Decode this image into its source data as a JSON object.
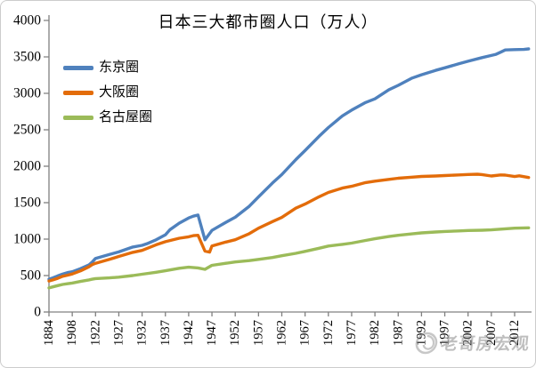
{
  "title": "日本三大都市圈人口（万人）",
  "watermark": {
    "text": "老哥房宏观",
    "logo_icon": "swirl-circle-icon",
    "color": "#8a8a8a"
  },
  "axis_color": "#808080",
  "chart_data": {
    "type": "line",
    "title": "日本三大都市圈人口（万人）",
    "xlabel": "",
    "ylabel": "",
    "ylim": [
      0,
      4000
    ],
    "y_ticks": [
      0,
      500,
      1000,
      1500,
      2000,
      2500,
      3000,
      3500,
      4000
    ],
    "x_ticks": [
      1884,
      1908,
      1922,
      1927,
      1932,
      1937,
      1942,
      1947,
      1952,
      1957,
      1962,
      1967,
      1972,
      1977,
      1982,
      1987,
      1992,
      1997,
      2002,
      2007,
      2012
    ],
    "x_tick_rotation": -90,
    "x_end_year": 2015,
    "grid": false,
    "legend_position": "inside-upper-left",
    "series": [
      {
        "id": "tokyo",
        "name": "东京圈",
        "color": "#4F81BD",
        "points": [
          [
            1884,
            450
          ],
          [
            1888,
            468
          ],
          [
            1893,
            495
          ],
          [
            1898,
            520
          ],
          [
            1903,
            540
          ],
          [
            1908,
            552
          ],
          [
            1913,
            595
          ],
          [
            1918,
            645
          ],
          [
            1920,
            685
          ],
          [
            1922,
            735
          ],
          [
            1925,
            790
          ],
          [
            1927,
            825
          ],
          [
            1930,
            892
          ],
          [
            1932,
            915
          ],
          [
            1933,
            935
          ],
          [
            1935,
            990
          ],
          [
            1937,
            1060
          ],
          [
            1938,
            1130
          ],
          [
            1940,
            1220
          ],
          [
            1942,
            1290
          ],
          [
            1943,
            1315
          ],
          [
            1944,
            1330
          ],
          [
            1945.5,
            990
          ],
          [
            1947,
            1120
          ],
          [
            1950,
            1230
          ],
          [
            1952,
            1300
          ],
          [
            1955,
            1450
          ],
          [
            1957,
            1580
          ],
          [
            1960,
            1770
          ],
          [
            1962,
            1885
          ],
          [
            1965,
            2090
          ],
          [
            1967,
            2215
          ],
          [
            1970,
            2410
          ],
          [
            1972,
            2530
          ],
          [
            1975,
            2690
          ],
          [
            1977,
            2770
          ],
          [
            1980,
            2875
          ],
          [
            1982,
            2925
          ],
          [
            1985,
            3050
          ],
          [
            1987,
            3110
          ],
          [
            1990,
            3210
          ],
          [
            1992,
            3255
          ],
          [
            1995,
            3315
          ],
          [
            1997,
            3350
          ],
          [
            2000,
            3405
          ],
          [
            2002,
            3440
          ],
          [
            2005,
            3490
          ],
          [
            2007,
            3520
          ],
          [
            2008,
            3535
          ],
          [
            2009,
            3565
          ],
          [
            2010,
            3595
          ],
          [
            2012,
            3600
          ],
          [
            2014,
            3602
          ],
          [
            2015,
            3610
          ]
        ]
      },
      {
        "id": "osaka",
        "name": "大阪圈",
        "color": "#E36C0A",
        "points": [
          [
            1884,
            425
          ],
          [
            1888,
            440
          ],
          [
            1893,
            462
          ],
          [
            1898,
            490
          ],
          [
            1903,
            505
          ],
          [
            1908,
            522
          ],
          [
            1913,
            565
          ],
          [
            1918,
            620
          ],
          [
            1920,
            650
          ],
          [
            1922,
            668
          ],
          [
            1925,
            722
          ],
          [
            1927,
            762
          ],
          [
            1930,
            818
          ],
          [
            1932,
            845
          ],
          [
            1935,
            922
          ],
          [
            1937,
            965
          ],
          [
            1940,
            1012
          ],
          [
            1942,
            1032
          ],
          [
            1943,
            1048
          ],
          [
            1944,
            1052
          ],
          [
            1945.5,
            835
          ],
          [
            1946.5,
            822
          ],
          [
            1947,
            905
          ],
          [
            1950,
            960
          ],
          [
            1952,
            992
          ],
          [
            1955,
            1075
          ],
          [
            1957,
            1150
          ],
          [
            1960,
            1240
          ],
          [
            1962,
            1298
          ],
          [
            1965,
            1425
          ],
          [
            1967,
            1480
          ],
          [
            1970,
            1580
          ],
          [
            1972,
            1640
          ],
          [
            1975,
            1700
          ],
          [
            1977,
            1725
          ],
          [
            1980,
            1775
          ],
          [
            1982,
            1795
          ],
          [
            1985,
            1820
          ],
          [
            1987,
            1835
          ],
          [
            1990,
            1850
          ],
          [
            1992,
            1860
          ],
          [
            1995,
            1866
          ],
          [
            1997,
            1872
          ],
          [
            2000,
            1880
          ],
          [
            2002,
            1886
          ],
          [
            2004,
            1890
          ],
          [
            2005,
            1885
          ],
          [
            2007,
            1866
          ],
          [
            2009,
            1880
          ],
          [
            2010,
            1878
          ],
          [
            2012,
            1858
          ],
          [
            2013,
            1868
          ],
          [
            2015,
            1845
          ]
        ]
      },
      {
        "id": "nagoya",
        "name": "名古屋圈",
        "color": "#9BBB59",
        "points": [
          [
            1884,
            330
          ],
          [
            1888,
            345
          ],
          [
            1893,
            362
          ],
          [
            1898,
            378
          ],
          [
            1903,
            388
          ],
          [
            1908,
            398
          ],
          [
            1913,
            420
          ],
          [
            1918,
            440
          ],
          [
            1920,
            450
          ],
          [
            1922,
            458
          ],
          [
            1925,
            468
          ],
          [
            1927,
            478
          ],
          [
            1930,
            500
          ],
          [
            1932,
            518
          ],
          [
            1935,
            545
          ],
          [
            1937,
            566
          ],
          [
            1940,
            600
          ],
          [
            1942,
            615
          ],
          [
            1944,
            605
          ],
          [
            1945.5,
            585
          ],
          [
            1947,
            640
          ],
          [
            1950,
            668
          ],
          [
            1952,
            686
          ],
          [
            1955,
            705
          ],
          [
            1957,
            722
          ],
          [
            1960,
            748
          ],
          [
            1962,
            772
          ],
          [
            1965,
            805
          ],
          [
            1967,
            832
          ],
          [
            1970,
            875
          ],
          [
            1972,
            905
          ],
          [
            1975,
            928
          ],
          [
            1977,
            945
          ],
          [
            1980,
            982
          ],
          [
            1982,
            1005
          ],
          [
            1985,
            1035
          ],
          [
            1987,
            1052
          ],
          [
            1990,
            1072
          ],
          [
            1992,
            1085
          ],
          [
            1995,
            1098
          ],
          [
            1997,
            1105
          ],
          [
            2000,
            1112
          ],
          [
            2002,
            1118
          ],
          [
            2005,
            1122
          ],
          [
            2007,
            1127
          ],
          [
            2010,
            1142
          ],
          [
            2012,
            1150
          ],
          [
            2015,
            1155
          ]
        ]
      }
    ]
  }
}
